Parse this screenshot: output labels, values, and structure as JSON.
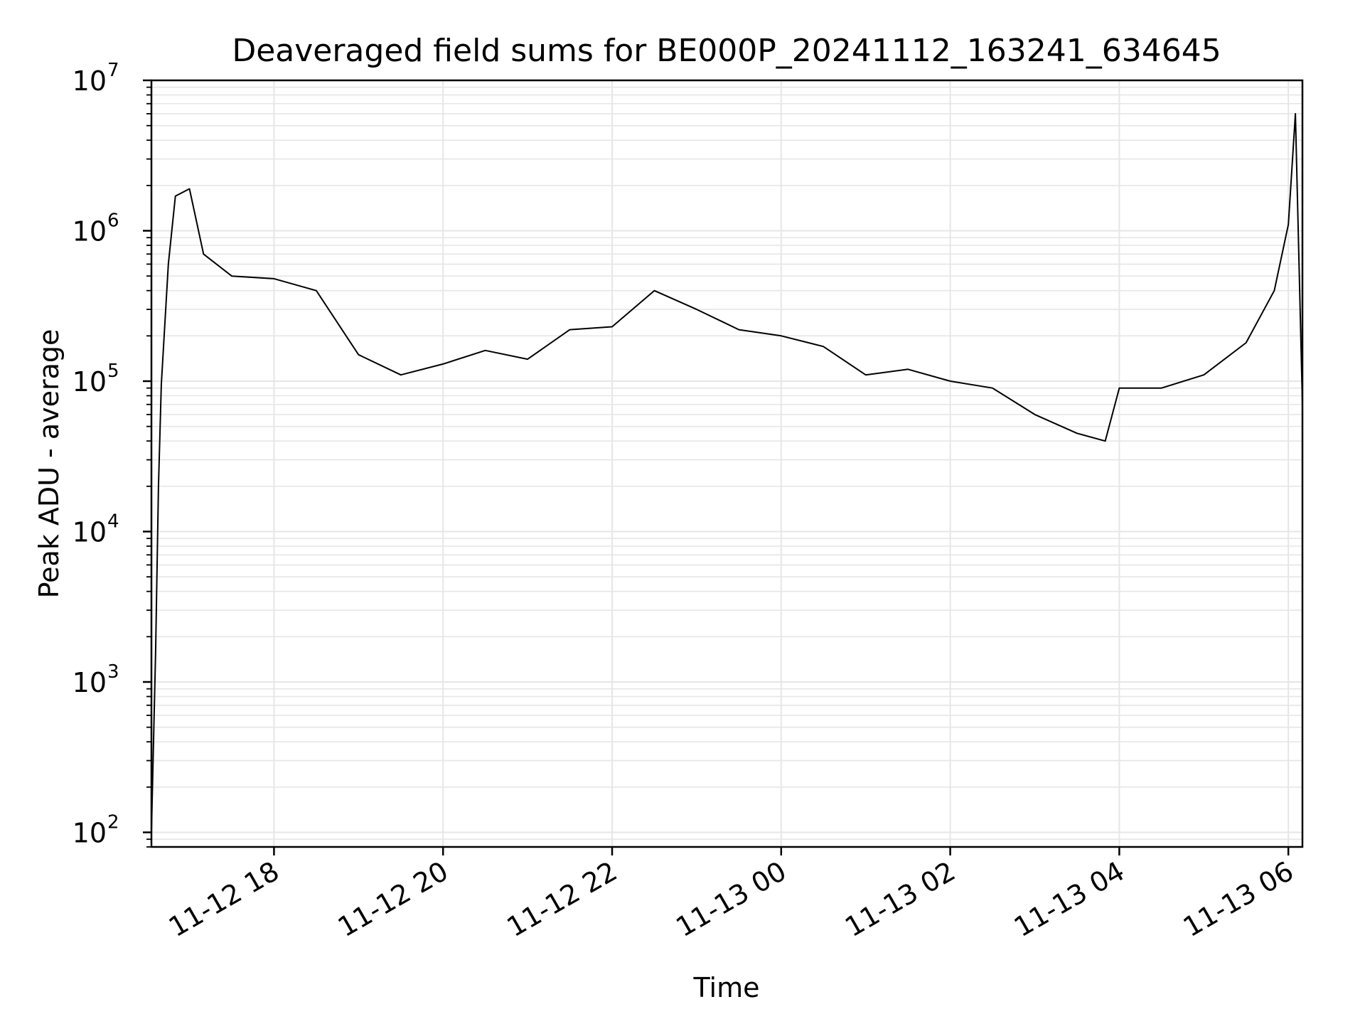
{
  "chart_data": {
    "type": "line",
    "title": "Deaveraged field sums for BE000P_20241112_163241_634645",
    "xlabel": "Time",
    "ylabel": "Peak ADU - average",
    "x_axis": {
      "kind": "datetime",
      "start": "2024-11-12 16:33",
      "end": "2024-11-13 06:10",
      "ticks": [
        "11-12 18",
        "11-12 20",
        "11-12 22",
        "11-13 00",
        "11-13 02",
        "11-13 04",
        "11-13 06"
      ],
      "tick_rotation_deg": 30
    },
    "y_axis": {
      "scale": "log",
      "ylim": [
        80,
        10000000
      ],
      "ticks": [
        {
          "base": "10",
          "exp": "2"
        },
        {
          "base": "10",
          "exp": "3"
        },
        {
          "base": "10",
          "exp": "4"
        },
        {
          "base": "10",
          "exp": "5"
        },
        {
          "base": "10",
          "exp": "6"
        },
        {
          "base": "10",
          "exp": "7"
        }
      ]
    },
    "grid": true,
    "line_color": "#000000",
    "grid_color": "#e6e6e6",
    "series": [
      {
        "name": "",
        "points": [
          [
            "2024-11-12 16:33",
            100
          ],
          [
            "2024-11-12 16:36",
            1600
          ],
          [
            "2024-11-12 16:38",
            20000
          ],
          [
            "2024-11-12 16:40",
            95000
          ],
          [
            "2024-11-12 16:45",
            600000
          ],
          [
            "2024-11-12 16:50",
            1700000
          ],
          [
            "2024-11-12 17:00",
            1900000
          ],
          [
            "2024-11-12 17:10",
            700000
          ],
          [
            "2024-11-12 17:30",
            500000
          ],
          [
            "2024-11-12 18:00",
            480000
          ],
          [
            "2024-11-12 18:30",
            400000
          ],
          [
            "2024-11-12 19:00",
            150000
          ],
          [
            "2024-11-12 19:30",
            110000
          ],
          [
            "2024-11-12 20:00",
            130000
          ],
          [
            "2024-11-12 20:30",
            160000
          ],
          [
            "2024-11-12 21:00",
            140000
          ],
          [
            "2024-11-12 21:30",
            220000
          ],
          [
            "2024-11-12 22:00",
            230000
          ],
          [
            "2024-11-12 22:30",
            400000
          ],
          [
            "2024-11-12 23:00",
            300000
          ],
          [
            "2024-11-12 23:30",
            220000
          ],
          [
            "2024-11-13 00:00",
            200000
          ],
          [
            "2024-11-13 00:30",
            170000
          ],
          [
            "2024-11-13 01:00",
            110000
          ],
          [
            "2024-11-13 01:30",
            120000
          ],
          [
            "2024-11-13 02:00",
            100000
          ],
          [
            "2024-11-13 02:30",
            90000
          ],
          [
            "2024-11-13 03:00",
            60000
          ],
          [
            "2024-11-13 03:30",
            45000
          ],
          [
            "2024-11-13 03:50",
            40000
          ],
          [
            "2024-11-13 04:00",
            90000
          ],
          [
            "2024-11-13 04:30",
            90000
          ],
          [
            "2024-11-13 05:00",
            110000
          ],
          [
            "2024-11-13 05:30",
            180000
          ],
          [
            "2024-11-13 05:50",
            400000
          ],
          [
            "2024-11-13 06:00",
            1100000
          ],
          [
            "2024-11-13 06:05",
            6000000
          ],
          [
            "2024-11-13 06:10",
            70000
          ]
        ]
      }
    ]
  }
}
